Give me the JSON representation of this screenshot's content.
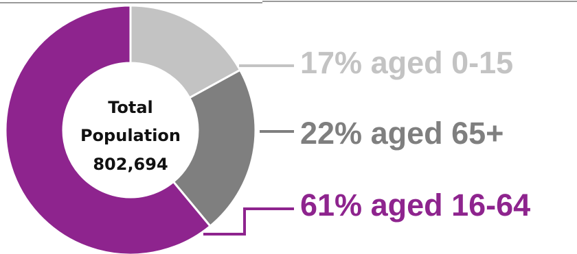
{
  "chart_data": {
    "type": "pie",
    "donut": true,
    "center_label": {
      "line1": "Total",
      "line2": "Population",
      "line3": "802,694"
    },
    "slices": [
      {
        "label": "aged 0-15",
        "value": 17,
        "display": "17% aged 0-15",
        "color": "#c3c3c3"
      },
      {
        "label": "aged 65+",
        "value": 22,
        "display": "22% aged 65+",
        "color": "#7f7f7f"
      },
      {
        "label": "aged 16-64",
        "value": 61,
        "display": "61% aged 16-64",
        "color": "#8e248e"
      }
    ],
    "legend": "right"
  }
}
